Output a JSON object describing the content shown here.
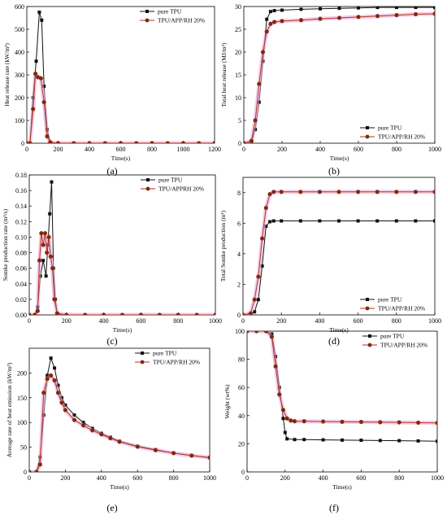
{
  "colors": {
    "pure": "#111111",
    "blend": "#b5331d",
    "blend_marker": "#7a2a12",
    "blend_halo": "#e7a6d8"
  },
  "chart_data": [
    {
      "type": "line",
      "panel_label": "(a)",
      "xlabel": "Time(s)",
      "ylabel": "Heat release rate (kW/m²)",
      "xlim": [
        0,
        1200
      ],
      "ylim": [
        0,
        600
      ],
      "xticks": [
        0,
        200,
        400,
        600,
        800,
        1000,
        1200
      ],
      "yticks": [
        0,
        100,
        200,
        300,
        400,
        500,
        600
      ],
      "grid": false,
      "legend_position": "top-right",
      "series": [
        {
          "name": "pure TPU",
          "key": "pure",
          "x": [
            0,
            20,
            40,
            60,
            80,
            95,
            110,
            130,
            150,
            200,
            300,
            400,
            500,
            600,
            700,
            800,
            900,
            1000,
            1100,
            1200
          ],
          "y": [
            0,
            0,
            200,
            360,
            575,
            540,
            250,
            60,
            3,
            0,
            0,
            0,
            0,
            0,
            0,
            0,
            0,
            0,
            0,
            0
          ]
        },
        {
          "name": "TPU/APP/RH 20%",
          "key": "blend",
          "x": [
            0,
            20,
            40,
            55,
            70,
            90,
            110,
            130,
            150,
            200,
            300,
            400,
            500,
            600,
            700,
            800,
            900,
            1000,
            1100,
            1200
          ],
          "y": [
            0,
            0,
            150,
            305,
            290,
            285,
            180,
            30,
            4,
            0,
            0,
            0,
            0,
            0,
            0,
            0,
            0,
            0,
            0,
            0
          ]
        }
      ]
    },
    {
      "type": "line",
      "panel_label": "(b)",
      "xlabel": "Time(s)",
      "ylabel": "Total heat release (MJ/m²)",
      "xlim": [
        0,
        1000
      ],
      "ylim": [
        0,
        30
      ],
      "xticks": [
        0,
        200,
        400,
        600,
        800,
        1000
      ],
      "yticks": [
        0,
        5,
        10,
        15,
        20,
        25,
        30
      ],
      "grid": false,
      "legend_position": "bottom-right",
      "series": [
        {
          "name": "pure TPU",
          "key": "pure",
          "x": [
            0,
            40,
            60,
            80,
            100,
            120,
            140,
            160,
            200,
            300,
            400,
            500,
            600,
            700,
            800,
            900,
            1000
          ],
          "y": [
            0,
            0.3,
            3,
            9,
            18,
            27.2,
            28.9,
            29.1,
            29.2,
            29.4,
            29.5,
            29.6,
            29.7,
            29.8,
            29.8,
            29.8,
            29.8
          ]
        },
        {
          "name": "TPU/APP/RH 20%",
          "key": "blend",
          "x": [
            0,
            40,
            60,
            80,
            100,
            120,
            140,
            160,
            200,
            300,
            400,
            500,
            600,
            700,
            800,
            900,
            1000
          ],
          "y": [
            0,
            0.5,
            5,
            13,
            20,
            24.5,
            26.2,
            26.6,
            26.8,
            27.0,
            27.3,
            27.5,
            27.7,
            27.9,
            28.1,
            28.3,
            28.4
          ]
        }
      ]
    },
    {
      "type": "line",
      "panel_label": "(c)",
      "xlabel": "Time(s)",
      "ylabel": "Somke production rate (m²/s)",
      "xlim": [
        0,
        1000
      ],
      "ylim": [
        0,
        0.18
      ],
      "xticks": [
        0,
        200,
        400,
        600,
        800,
        1000
      ],
      "yticks": [
        0,
        0.02,
        0.04,
        0.06,
        0.08,
        0.1,
        0.12,
        0.14,
        0.16,
        0.18
      ],
      "ytick_labels": [
        "0.00",
        "0.02",
        "0.04",
        "0.06",
        "0.08",
        "0.10",
        "0.12",
        "0.14",
        "0.16",
        "0.18"
      ],
      "grid": false,
      "legend_position": "top-right",
      "series": [
        {
          "name": "pure TPU",
          "key": "pure",
          "x": [
            0,
            30,
            45,
            60,
            75,
            90,
            100,
            110,
            120,
            130,
            140,
            150,
            160,
            200,
            300,
            400,
            500,
            600,
            700,
            800,
            900,
            1000
          ],
          "y": [
            0,
            0,
            0.01,
            0.05,
            0.07,
            0.05,
            0.09,
            0.13,
            0.171,
            0.06,
            0.02,
            0.002,
            0,
            0,
            0,
            0,
            0,
            0,
            0,
            0,
            0,
            0
          ]
        },
        {
          "name": "TPU/APPRH 20%",
          "key": "blend",
          "x": [
            0,
            30,
            45,
            55,
            65,
            75,
            85,
            95,
            105,
            115,
            125,
            135,
            150,
            200,
            300,
            400,
            500,
            600,
            700,
            800,
            900,
            1000
          ],
          "y": [
            0,
            0,
            0.005,
            0.07,
            0.105,
            0.09,
            0.105,
            0.08,
            0.1,
            0.075,
            0.06,
            0.02,
            0.002,
            0,
            0,
            0,
            0,
            0,
            0,
            0,
            0,
            0
          ]
        }
      ]
    },
    {
      "type": "line",
      "panel_label": "(d)",
      "xlabel": "Time(s)",
      "ylabel": "Total Somke production (m²)",
      "xlim": [
        0,
        1000
      ],
      "ylim": [
        0,
        9
      ],
      "xticks": [
        0,
        200,
        400,
        600,
        800,
        1000
      ],
      "yticks": [
        0,
        2,
        4,
        6,
        8
      ],
      "grid": false,
      "legend_position": "bottom-right",
      "series": [
        {
          "name": "pure TPU",
          "key": "pure",
          "x": [
            0,
            40,
            60,
            80,
            100,
            120,
            140,
            160,
            200,
            300,
            400,
            500,
            600,
            700,
            800,
            900,
            1000
          ],
          "y": [
            0,
            0,
            0.2,
            1.0,
            3.2,
            5.8,
            6.1,
            6.15,
            6.15,
            6.15,
            6.15,
            6.15,
            6.15,
            6.15,
            6.15,
            6.15,
            6.15
          ]
        },
        {
          "name": "TPU/APP/RH 20%",
          "key": "blend",
          "x": [
            0,
            40,
            60,
            80,
            100,
            120,
            140,
            160,
            200,
            300,
            400,
            500,
            600,
            700,
            800,
            900,
            1000
          ],
          "y": [
            0,
            0.1,
            1.0,
            2.5,
            5.0,
            7.0,
            7.9,
            8.05,
            8.05,
            8.05,
            8.05,
            8.05,
            8.05,
            8.05,
            8.05,
            8.05,
            8.05
          ]
        }
      ]
    },
    {
      "type": "line",
      "panel_label": "(e)",
      "xlabel": "Time(s)",
      "ylabel": "Average rate of heat emission (kW/m²)",
      "xlim": [
        0,
        1000
      ],
      "ylim": [
        0,
        250
      ],
      "xticks": [
        0,
        200,
        400,
        600,
        800,
        1000
      ],
      "yticks": [
        0,
        50,
        100,
        150,
        200
      ],
      "grid": false,
      "legend_position": "top-right",
      "series": [
        {
          "name": "pure TPU",
          "key": "pure",
          "x": [
            0,
            40,
            60,
            80,
            100,
            120,
            140,
            160,
            180,
            200,
            250,
            300,
            350,
            400,
            450,
            500,
            600,
            700,
            800,
            900,
            1000
          ],
          "y": [
            0,
            0,
            30,
            115,
            195,
            230,
            210,
            175,
            150,
            135,
            115,
            100,
            88,
            78,
            70,
            62,
            52,
            45,
            38,
            33,
            29
          ]
        },
        {
          "name": "TPU/APP/RH 20%",
          "key": "blend",
          "x": [
            0,
            40,
            60,
            80,
            100,
            120,
            140,
            160,
            180,
            200,
            250,
            300,
            350,
            400,
            450,
            500,
            600,
            700,
            800,
            900,
            1000
          ],
          "y": [
            0,
            0,
            15,
            160,
            188,
            195,
            185,
            160,
            140,
            125,
            105,
            94,
            84,
            76,
            68,
            61,
            51,
            44,
            38,
            33,
            29
          ]
        }
      ]
    },
    {
      "type": "line",
      "panel_label": "(f)",
      "xlabel": "Time(s)",
      "ylabel": "Weight (wt%)",
      "xlim": [
        0,
        1000
      ],
      "ylim": [
        0,
        100
      ],
      "xticks": [
        0,
        200,
        400,
        600,
        800,
        1000
      ],
      "yticks": [
        0,
        20,
        40,
        60,
        80,
        100
      ],
      "grid": false,
      "legend_position": "top-right",
      "series": [
        {
          "name": "pure TPU",
          "key": "pure",
          "x": [
            0,
            50,
            100,
            130,
            150,
            170,
            190,
            200,
            210,
            250,
            300,
            400,
            500,
            600,
            700,
            800,
            900,
            1000
          ],
          "y": [
            100,
            100,
            100,
            98,
            82,
            60,
            38,
            28,
            23.5,
            23,
            23,
            22.8,
            22.6,
            22.5,
            22.3,
            22.2,
            22.0,
            21.8
          ]
        },
        {
          "name": "TPU/APP/RH 20%",
          "key": "blend",
          "x": [
            0,
            50,
            100,
            130,
            150,
            170,
            190,
            210,
            230,
            250,
            300,
            400,
            500,
            600,
            700,
            800,
            900,
            1000
          ],
          "y": [
            100,
            100,
            100,
            96,
            75,
            55,
            44,
            38,
            36.5,
            36,
            36,
            35.8,
            35.6,
            35.5,
            35.3,
            35.2,
            35.0,
            34.8
          ]
        }
      ]
    }
  ]
}
